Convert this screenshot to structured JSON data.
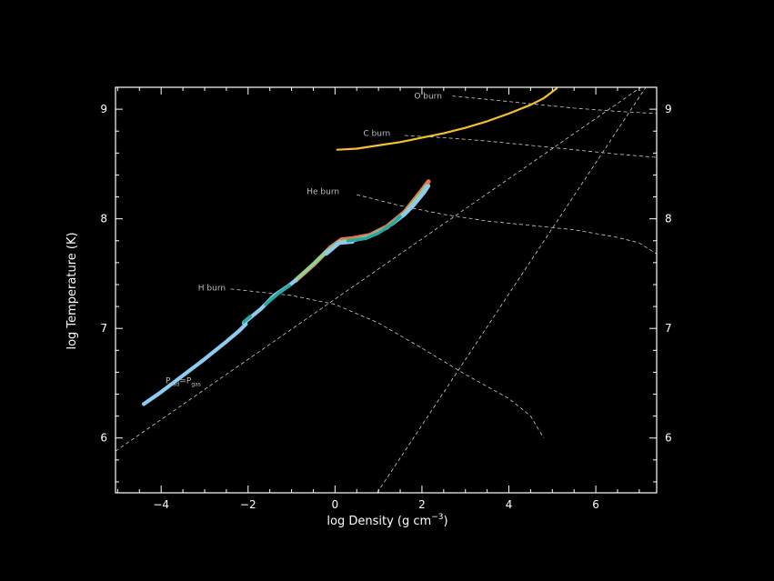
{
  "chart_data": {
    "type": "line",
    "xlabel": "log Density (g cm",
    "xlabel_sup": "−3",
    "xlabel_close": ")",
    "ylabel": "log Temperature (K)",
    "xlim": [
      -5.05,
      7.4
    ],
    "ylim": [
      5.5,
      9.2
    ],
    "x_ticks": [
      {
        "value": -4,
        "label": "−4"
      },
      {
        "value": -2,
        "label": "−2"
      },
      {
        "value": 0,
        "label": "0"
      },
      {
        "value": 2,
        "label": "2"
      },
      {
        "value": 4,
        "label": "4"
      },
      {
        "value": 6,
        "label": "6"
      }
    ],
    "y_ticks": [
      {
        "value": 6,
        "label": "6"
      },
      {
        "value": 7,
        "label": "7"
      },
      {
        "value": 8,
        "label": "8"
      },
      {
        "value": 9,
        "label": "9"
      }
    ],
    "y_ticks_right": [
      {
        "value": 6,
        "label": "6"
      },
      {
        "value": 7,
        "label": "7"
      },
      {
        "value": 8,
        "label": "8"
      },
      {
        "value": 9,
        "label": "9"
      }
    ],
    "grid": false,
    "colors": {
      "background": "#000000",
      "axes": "#ffffff",
      "reference_lines": "#cccccc",
      "core_track": "#f2c12e",
      "profile_light": "#8ecbf0",
      "profile_teal": "#2aa8a0",
      "profile_green": "#8fd18f",
      "profile_orange": "#e07850"
    },
    "reference_lines": [
      {
        "name": "Prad_eq_Pgas",
        "points": [
          [
            -5.05,
            5.88
          ],
          [
            7.4,
            9.3
          ]
        ]
      },
      {
        "name": "degeneracy",
        "points": [
          [
            0.97,
            5.5
          ],
          [
            7.4,
            9.35
          ]
        ]
      },
      {
        "name": "H_burn",
        "points": [
          [
            -2.4,
            7.36
          ],
          [
            -1.0,
            7.3
          ],
          [
            0.0,
            7.22
          ],
          [
            1.0,
            7.05
          ],
          [
            2.0,
            6.82
          ],
          [
            3.0,
            6.58
          ],
          [
            4.0,
            6.36
          ],
          [
            4.5,
            6.2
          ],
          [
            4.8,
            6.0
          ]
        ]
      },
      {
        "name": "He_burn",
        "points": [
          [
            0.5,
            8.22
          ],
          [
            1.5,
            8.12
          ],
          [
            2.5,
            8.04
          ],
          [
            3.5,
            7.98
          ],
          [
            4.5,
            7.94
          ],
          [
            5.5,
            7.9
          ],
          [
            6.5,
            7.83
          ],
          [
            7.0,
            7.78
          ],
          [
            7.4,
            7.68
          ]
        ]
      },
      {
        "name": "C_burn",
        "points": [
          [
            1.6,
            8.76
          ],
          [
            2.5,
            8.74
          ],
          [
            3.5,
            8.71
          ],
          [
            4.5,
            8.67
          ],
          [
            5.5,
            8.63
          ],
          [
            6.5,
            8.59
          ],
          [
            7.4,
            8.56
          ]
        ]
      },
      {
        "name": "O_burn",
        "points": [
          [
            2.7,
            9.12
          ],
          [
            3.5,
            9.09
          ],
          [
            4.5,
            9.05
          ],
          [
            5.5,
            9.01
          ],
          [
            6.5,
            8.98
          ],
          [
            7.4,
            8.96
          ]
        ]
      }
    ],
    "annotations": [
      {
        "text": "H burn",
        "x": -3.15,
        "y": 7.37
      },
      {
        "text": "He burn",
        "x": -0.65,
        "y": 8.25
      },
      {
        "text": "C burn",
        "x": 0.65,
        "y": 8.78
      },
      {
        "text": "O burn",
        "x": 1.82,
        "y": 9.12
      }
    ],
    "prad_label": {
      "text": "P",
      "sub1": "rad",
      "mid": "=P",
      "sub2": "gas",
      "x": -3.9,
      "y": 6.5
    },
    "series": [
      {
        "kind": "core_track",
        "points": [
          [
            0.05,
            8.63
          ],
          [
            0.5,
            8.64
          ],
          [
            1.0,
            8.67
          ],
          [
            1.5,
            8.7
          ],
          [
            2.0,
            8.74
          ],
          [
            2.5,
            8.78
          ],
          [
            3.0,
            8.83
          ],
          [
            3.5,
            8.89
          ],
          [
            4.0,
            8.96
          ],
          [
            4.5,
            9.04
          ],
          [
            4.8,
            9.1
          ],
          [
            5.1,
            9.19
          ]
        ]
      },
      {
        "kind": "profile_orange",
        "points": [
          [
            -0.9,
            7.44
          ],
          [
            -0.5,
            7.58
          ],
          [
            -0.1,
            7.74
          ],
          [
            0.15,
            7.81
          ],
          [
            0.4,
            7.82
          ],
          [
            0.8,
            7.85
          ],
          [
            1.2,
            7.93
          ],
          [
            1.6,
            8.06
          ],
          [
            2.0,
            8.26
          ],
          [
            2.15,
            8.34
          ]
        ]
      },
      {
        "kind": "profile_green",
        "points": [
          [
            -1.0,
            7.41
          ],
          [
            -0.6,
            7.55
          ],
          [
            -0.2,
            7.7
          ],
          [
            0.1,
            7.79
          ],
          [
            0.4,
            7.8
          ],
          [
            0.8,
            7.84
          ],
          [
            1.2,
            7.92
          ],
          [
            1.6,
            8.05
          ],
          [
            2.0,
            8.24
          ],
          [
            2.1,
            8.3
          ]
        ]
      },
      {
        "kind": "profile_light",
        "points": [
          [
            -4.4,
            6.31
          ],
          [
            -4.0,
            6.42
          ],
          [
            -3.5,
            6.57
          ],
          [
            -3.0,
            6.72
          ],
          [
            -2.5,
            6.88
          ],
          [
            -2.2,
            6.98
          ],
          [
            -2.05,
            7.04
          ]
        ]
      },
      {
        "kind": "profile_light",
        "points": [
          [
            -2.1,
            7.05
          ],
          [
            -1.7,
            7.18
          ],
          [
            -1.4,
            7.3
          ],
          [
            -1.1,
            7.38
          ],
          [
            -0.9,
            7.44
          ]
        ]
      },
      {
        "kind": "profile_light",
        "points": [
          [
            -0.2,
            7.68
          ],
          [
            0.1,
            7.78
          ],
          [
            0.4,
            7.79
          ]
        ]
      },
      {
        "kind": "profile_light",
        "points": [
          [
            1.3,
            7.95
          ],
          [
            1.6,
            8.04
          ],
          [
            1.8,
            8.12
          ],
          [
            2.05,
            8.24
          ],
          [
            2.15,
            8.3
          ]
        ]
      },
      {
        "kind": "profile_teal",
        "points": [
          [
            -2.1,
            7.06
          ],
          [
            -1.95,
            7.11
          ]
        ]
      },
      {
        "kind": "profile_teal",
        "points": [
          [
            -1.6,
            7.22
          ],
          [
            -1.3,
            7.32
          ],
          [
            -1.05,
            7.39
          ]
        ]
      },
      {
        "kind": "profile_teal",
        "points": [
          [
            0.3,
            7.8
          ],
          [
            0.7,
            7.82
          ],
          [
            1.0,
            7.87
          ],
          [
            1.3,
            7.95
          ],
          [
            1.5,
            8.02
          ]
        ]
      }
    ]
  }
}
